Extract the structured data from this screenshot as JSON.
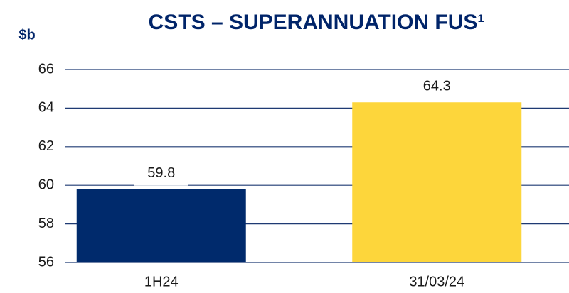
{
  "chart_data": {
    "type": "bar",
    "title": "CSTS – SUPERANNUATION FUS¹",
    "y_label": "$b",
    "categories": [
      "1H24",
      "31/03/24"
    ],
    "values": [
      59.8,
      64.3
    ],
    "colors": [
      "#002a6c",
      "#fdd63b"
    ],
    "ylim": [
      56,
      66
    ],
    "yticks": [
      56,
      58,
      60,
      62,
      64,
      66
    ],
    "grid": true
  }
}
